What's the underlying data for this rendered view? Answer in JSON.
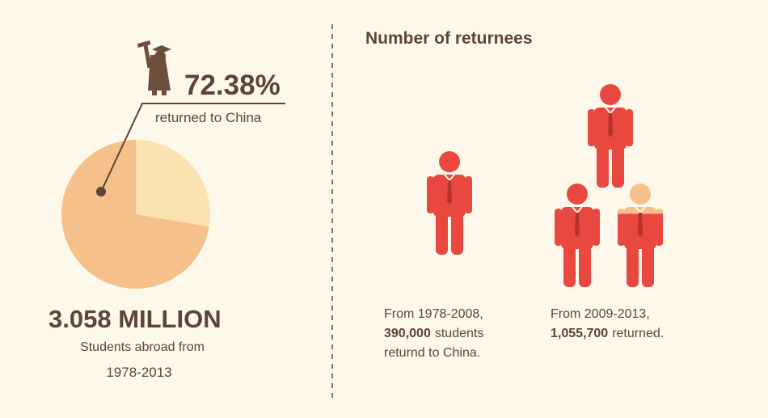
{
  "chart_data": {
    "type": "pie",
    "values": [
      72.38,
      27.62
    ],
    "value_labels": [
      "72.38%",
      null
    ],
    "colors": [
      "#f5c08a",
      "#fae3b0"
    ],
    "annotation": "returned to China",
    "total": "3.058 MILLION",
    "total_caption": "Students abroad from",
    "period": "1978-2013"
  },
  "returnees": {
    "title": "Number of returnees",
    "color": "#e8483f",
    "partial_color": "#f5c08a",
    "groups": [
      {
        "period": "From 1978-2008,",
        "count": 390000,
        "count_label": "390,000",
        "count_suffix": "students",
        "closing": "returnd to China."
      },
      {
        "period": "From 2009-2013,",
        "count": 1055700,
        "count_label": "1,055,700",
        "count_suffix": "returned."
      }
    ]
  }
}
